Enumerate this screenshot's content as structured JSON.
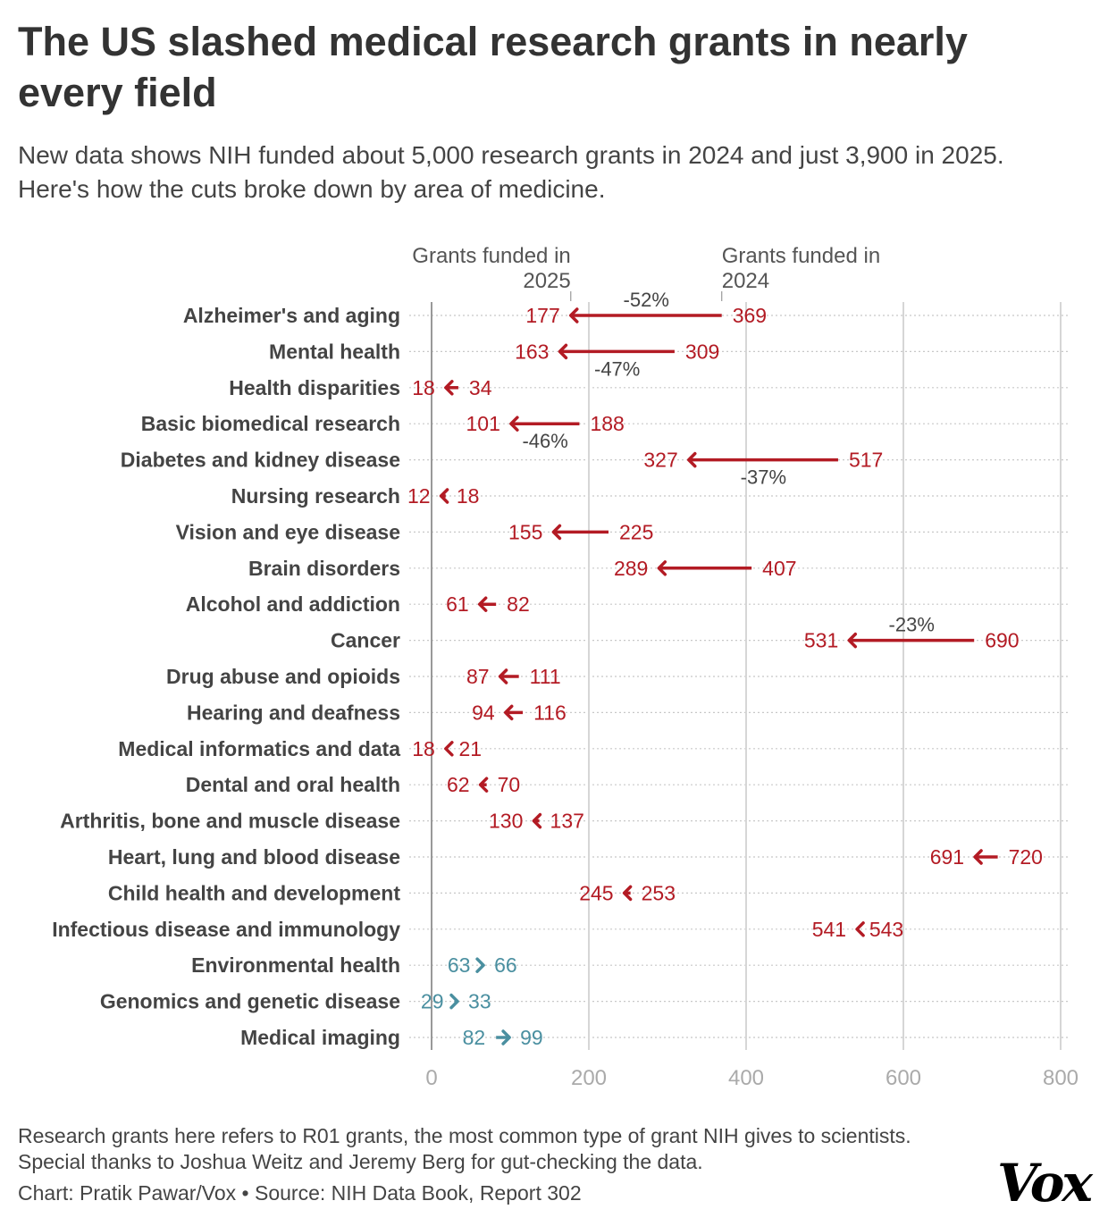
{
  "title": "The US slashed medical research grants in nearly every field",
  "subtitle": "New data shows NIH funded about 5,000 research grants in 2024 and just 3,900 in 2025. Here's how the cuts broke down by area of medicine.",
  "note": "Research grants here refers to R01 grants, the most common type of grant NIH gives to scientists. Special thanks to Joshua Weitz and Jeremy Berg for gut-checking the data.",
  "credit": "Chart: Pratik Pawar/Vox • Source: NIH Data Book, Report 302",
  "logo": "Vox",
  "colors": {
    "decrease": "#b31b24",
    "increase": "#4a8fa0",
    "grid": "#d6d6d6",
    "text": "#333333"
  },
  "chart_data": {
    "type": "arrow-dumbbell",
    "annotation_2025": [
      "Grants funded in",
      "2025"
    ],
    "annotation_2024": [
      "Grants funded in",
      "2024"
    ],
    "xlim": [
      0,
      800
    ],
    "xticks": [
      "0",
      "200",
      "400",
      "600",
      "800"
    ],
    "grid": true,
    "rows": [
      {
        "label": "Alzheimer's and aging",
        "y2024": 369,
        "y2025": 177,
        "pct": "-52%",
        "pct_pos": "above"
      },
      {
        "label": "Mental health",
        "y2024": 309,
        "y2025": 163,
        "pct": "-47%",
        "pct_pos": "below"
      },
      {
        "label": "Health disparities",
        "y2024": 34,
        "y2025": 18
      },
      {
        "label": "Basic biomedical research",
        "y2024": 188,
        "y2025": 101,
        "pct": "-46%",
        "pct_pos": "below"
      },
      {
        "label": "Diabetes and kidney disease",
        "y2024": 517,
        "y2025": 327,
        "pct": "-37%",
        "pct_pos": "below"
      },
      {
        "label": "Nursing research",
        "y2024": 18,
        "y2025": 12
      },
      {
        "label": "Vision and eye disease",
        "y2024": 225,
        "y2025": 155
      },
      {
        "label": "Brain disorders",
        "y2024": 407,
        "y2025": 289
      },
      {
        "label": "Alcohol and addiction",
        "y2024": 82,
        "y2025": 61
      },
      {
        "label": "Cancer",
        "y2024": 690,
        "y2025": 531,
        "pct": "-23%",
        "pct_pos": "above"
      },
      {
        "label": "Drug abuse and opioids",
        "y2024": 111,
        "y2025": 87
      },
      {
        "label": "Hearing and deafness",
        "y2024": 116,
        "y2025": 94
      },
      {
        "label": "Medical informatics and data",
        "y2024": 21,
        "y2025": 18
      },
      {
        "label": "Dental and oral health",
        "y2024": 70,
        "y2025": 62
      },
      {
        "label": "Arthritis, bone and muscle disease",
        "y2024": 137,
        "y2025": 130
      },
      {
        "label": "Heart, lung and blood disease",
        "y2024": 720,
        "y2025": 691
      },
      {
        "label": "Child health and development",
        "y2024": 253,
        "y2025": 245
      },
      {
        "label": "Infectious disease and immunology",
        "y2024": 543,
        "y2025": 541
      },
      {
        "label": "Environmental health",
        "y2024": 63,
        "y2025": 66
      },
      {
        "label": "Genomics and genetic disease",
        "y2024": 29,
        "y2025": 33
      },
      {
        "label": "Medical imaging",
        "y2024": 82,
        "y2025": 99
      }
    ]
  }
}
